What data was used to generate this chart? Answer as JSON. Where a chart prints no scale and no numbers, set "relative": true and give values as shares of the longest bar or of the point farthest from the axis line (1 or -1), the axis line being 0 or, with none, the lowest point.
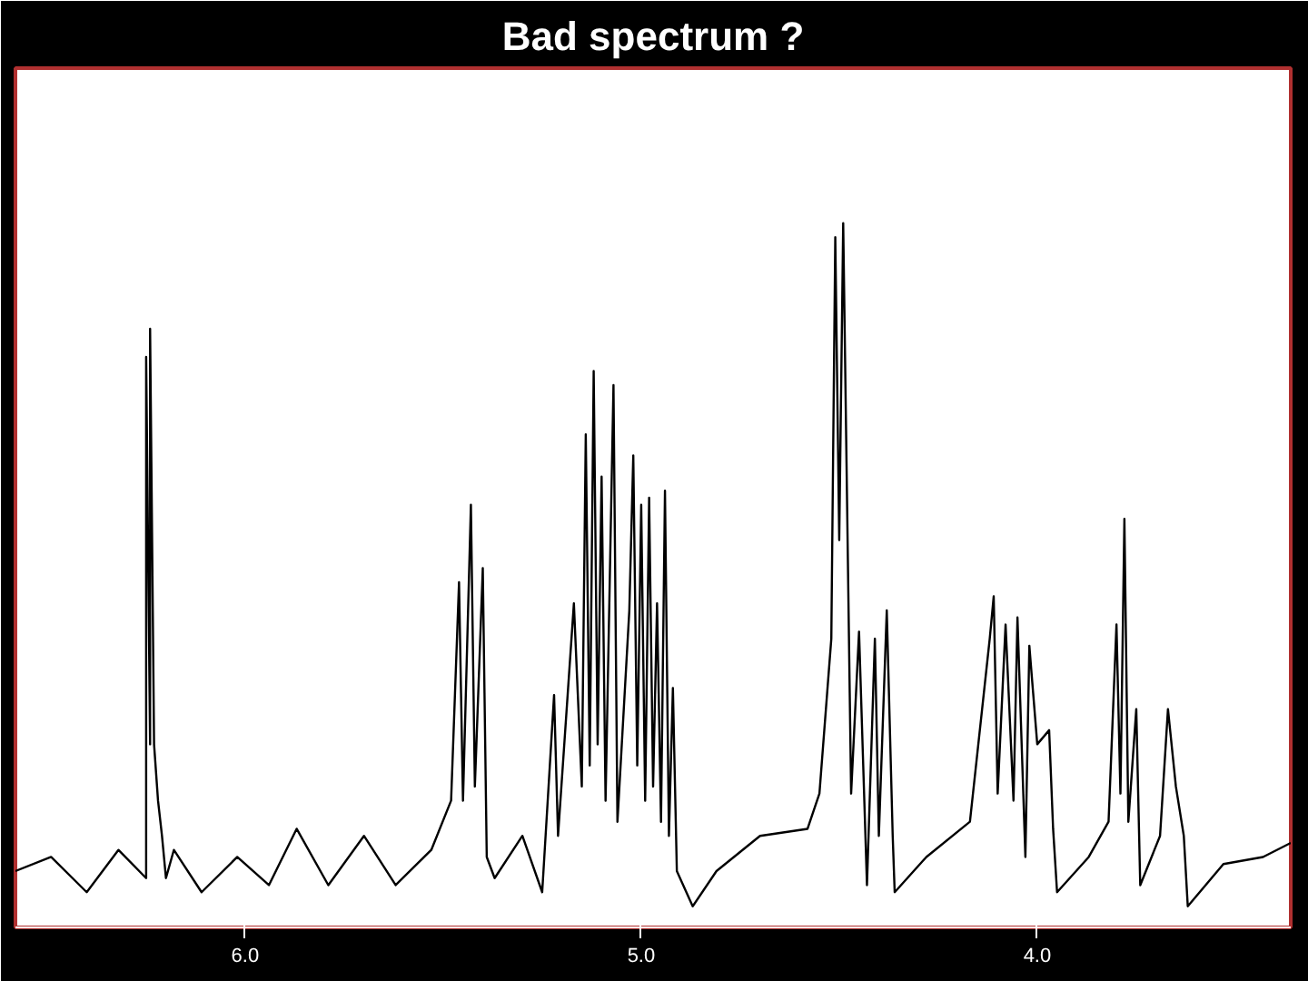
{
  "chart_data": {
    "type": "line",
    "title": "Bad spectrum ?",
    "relative": true,
    "xlim": [
      6.58,
      3.36
    ],
    "xticks": [
      {
        "value": 6.0,
        "label": "6.0"
      },
      {
        "value": 5.0,
        "label": "5.0"
      },
      {
        "value": 4.0,
        "label": "4.0"
      }
    ],
    "grid": false,
    "marker": "none",
    "line_style": "solid",
    "tick_labels": "x",
    "series": [
      {
        "color": "#000000",
        "x": [
          6.58,
          6.49,
          6.4,
          6.32,
          6.25,
          6.25,
          6.24,
          6.24,
          6.23,
          6.22,
          6.21,
          6.2,
          6.18,
          6.11,
          6.02,
          5.94,
          5.87,
          5.79,
          5.7,
          5.62,
          5.53,
          5.48,
          5.46,
          5.45,
          5.43,
          5.42,
          5.4,
          5.39,
          5.37,
          5.3,
          5.25,
          5.22,
          5.21,
          5.17,
          5.15,
          5.14,
          5.13,
          5.12,
          5.11,
          5.1,
          5.09,
          5.07,
          5.06,
          5.03,
          5.02,
          5.01,
          5.0,
          4.99,
          4.98,
          4.97,
          4.96,
          4.95,
          4.94,
          4.93,
          4.92,
          4.91,
          4.87,
          4.81,
          4.7,
          4.58,
          4.55,
          4.52,
          4.51,
          4.5,
          4.49,
          4.47,
          4.45,
          4.43,
          4.41,
          4.4,
          4.38,
          4.365,
          4.36,
          4.28,
          4.17,
          4.12,
          4.11,
          4.1,
          4.08,
          4.06,
          4.05,
          4.03,
          4.02,
          4.0,
          3.97,
          3.96,
          3.95,
          3.87,
          3.82,
          3.8,
          3.79,
          3.78,
          3.77,
          3.75,
          3.74,
          3.69,
          3.67,
          3.65,
          3.63,
          3.62,
          3.53,
          3.43,
          3.36
        ],
        "values": [
          0.08,
          0.1,
          0.05,
          0.11,
          0.07,
          0.81,
          0.26,
          0.85,
          0.26,
          0.18,
          0.13,
          0.07,
          0.11,
          0.05,
          0.1,
          0.06,
          0.14,
          0.06,
          0.13,
          0.06,
          0.11,
          0.18,
          0.49,
          0.18,
          0.6,
          0.2,
          0.51,
          0.1,
          0.07,
          0.13,
          0.05,
          0.33,
          0.13,
          0.46,
          0.2,
          0.7,
          0.23,
          0.79,
          0.26,
          0.64,
          0.18,
          0.77,
          0.15,
          0.45,
          0.67,
          0.23,
          0.6,
          0.18,
          0.61,
          0.2,
          0.46,
          0.15,
          0.62,
          0.13,
          0.34,
          0.08,
          0.03,
          0.08,
          0.13,
          0.14,
          0.19,
          0.41,
          0.98,
          0.55,
          1.0,
          0.19,
          0.42,
          0.06,
          0.41,
          0.13,
          0.45,
          0.13,
          0.05,
          0.1,
          0.15,
          0.41,
          0.47,
          0.19,
          0.43,
          0.18,
          0.44,
          0.1,
          0.4,
          0.26,
          0.28,
          0.14,
          0.05,
          0.1,
          0.15,
          0.43,
          0.19,
          0.58,
          0.15,
          0.31,
          0.06,
          0.13,
          0.31,
          0.2,
          0.13,
          0.03,
          0.09,
          0.1,
          0.12
        ]
      }
    ]
  }
}
